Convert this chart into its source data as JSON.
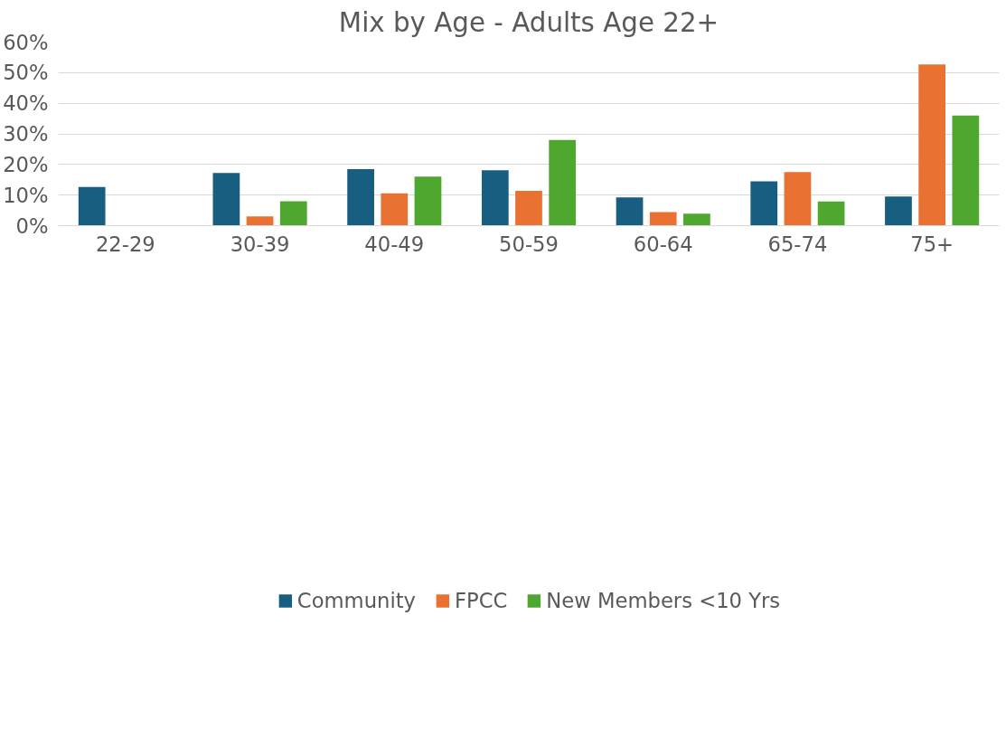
{
  "chart_data": {
    "type": "bar",
    "title": "Mix by Age - Adults Age 22+",
    "categories": [
      "22-29",
      "30-39",
      "40-49",
      "50-59",
      "60-64",
      "65-74",
      "75+"
    ],
    "series": [
      {
        "name": "Community",
        "color": "#175e80",
        "values": [
          12.6,
          17.2,
          18.5,
          18.1,
          9.2,
          14.5,
          9.5
        ]
      },
      {
        "name": "FPCC",
        "color": "#e97132",
        "values": [
          0,
          3.0,
          10.6,
          11.4,
          4.4,
          17.5,
          52.7
        ]
      },
      {
        "name": "New Members <10 Yrs",
        "color": "#4ea72e",
        "values": [
          0,
          8.0,
          16.0,
          28.0,
          3.9,
          7.9,
          36.0
        ]
      }
    ],
    "ylim": [
      0,
      60
    ],
    "yticks": [
      {
        "value": 0,
        "label": "0%"
      },
      {
        "value": 10,
        "label": "10%"
      },
      {
        "value": 20,
        "label": "20%"
      },
      {
        "value": 30,
        "label": "30%"
      },
      {
        "value": 40,
        "label": "40%"
      },
      {
        "value": 50,
        "label": "50%"
      },
      {
        "value": 60,
        "label": "60%"
      }
    ],
    "grid": "y",
    "legend": "bottom"
  }
}
